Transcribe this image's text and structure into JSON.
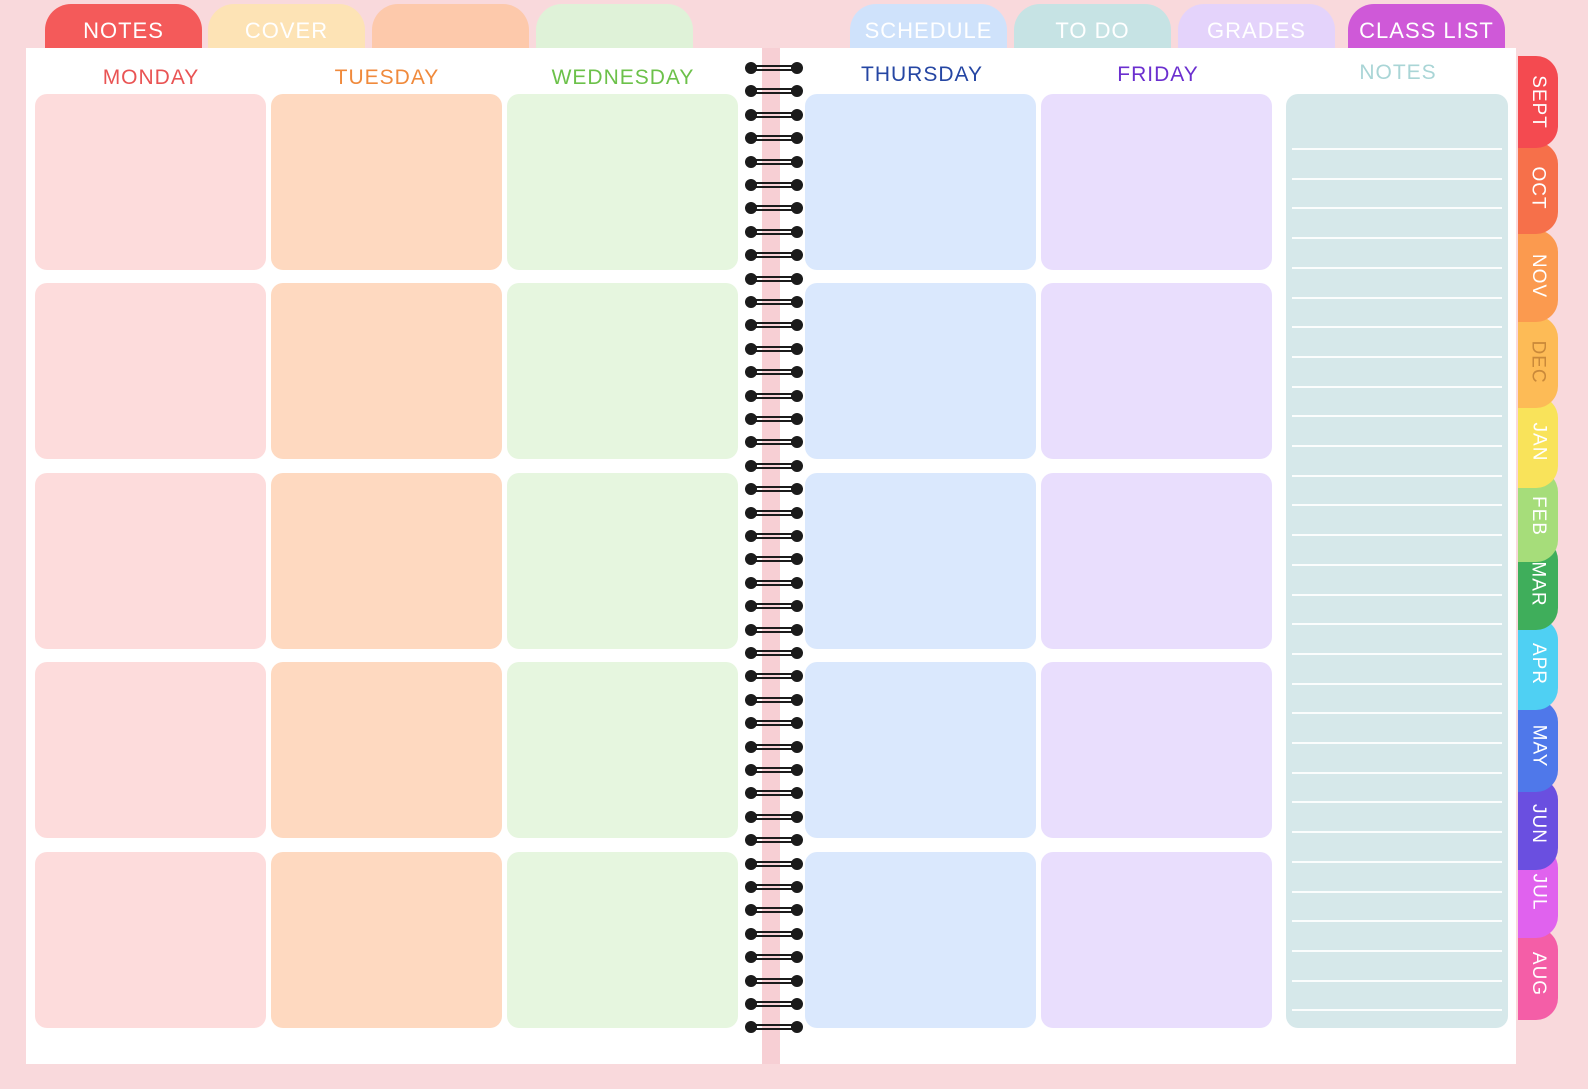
{
  "top_tabs": [
    {
      "label": "NOTES",
      "color": "#f45a5a"
    },
    {
      "label": "COVER",
      "color": "#fde3b5"
    },
    {
      "label": "",
      "color": "#fdc9ab"
    },
    {
      "label": "",
      "color": "#dff2d8"
    },
    {
      "label": "SCHEDULE",
      "color": "#cfe2fb"
    },
    {
      "label": "TO DO",
      "color": "#c6e3e4"
    },
    {
      "label": "GRADES",
      "color": "#e4d3fb"
    },
    {
      "label": "CLASS LIST",
      "color": "#cf59d8"
    }
  ],
  "days": [
    {
      "label": "MONDAY",
      "text_color": "#e95454",
      "cell_color": "#fddcdc"
    },
    {
      "label": "TUESDAY",
      "text_color": "#f08a3c",
      "cell_color": "#fed9c0"
    },
    {
      "label": "WEDNESDAY",
      "text_color": "#6cc14a",
      "cell_color": "#e6f6df"
    },
    {
      "label": "THURSDAY",
      "text_color": "#2546a3",
      "cell_color": "#dae8fd"
    },
    {
      "label": "FRIDAY",
      "text_color": "#6b2fcf",
      "cell_color": "#e9defd"
    }
  ],
  "notes": {
    "label": "NOTES",
    "text_color": "#a9d5d6"
  },
  "months": [
    {
      "label": "SEPT",
      "color": "#f44a50",
      "text_color": "#ffffff"
    },
    {
      "label": "OCT",
      "color": "#f6704a",
      "text_color": "#ffffff"
    },
    {
      "label": "NOV",
      "color": "#fb9a4f",
      "text_color": "#ffffff"
    },
    {
      "label": "DEC",
      "color": "#fdbb56",
      "text_color": "#c9893a"
    },
    {
      "label": "JAN",
      "color": "#f9e35a",
      "text_color": "#ffffff"
    },
    {
      "label": "FEB",
      "color": "#a6dd7a",
      "text_color": "#ffffff"
    },
    {
      "label": "MAR",
      "color": "#3fae5b",
      "text_color": "#ffffff"
    },
    {
      "label": "APR",
      "color": "#4fd0f3",
      "text_color": "#ffffff"
    },
    {
      "label": "MAY",
      "color": "#4f78ea",
      "text_color": "#ffffff"
    },
    {
      "label": "JUN",
      "color": "#6a4fe0",
      "text_color": "#ffffff"
    },
    {
      "label": "JUL",
      "color": "#e062ee",
      "text_color": "#ffffff"
    },
    {
      "label": "AUG",
      "color": "#f45ea7",
      "text_color": "#ffffff"
    }
  ]
}
